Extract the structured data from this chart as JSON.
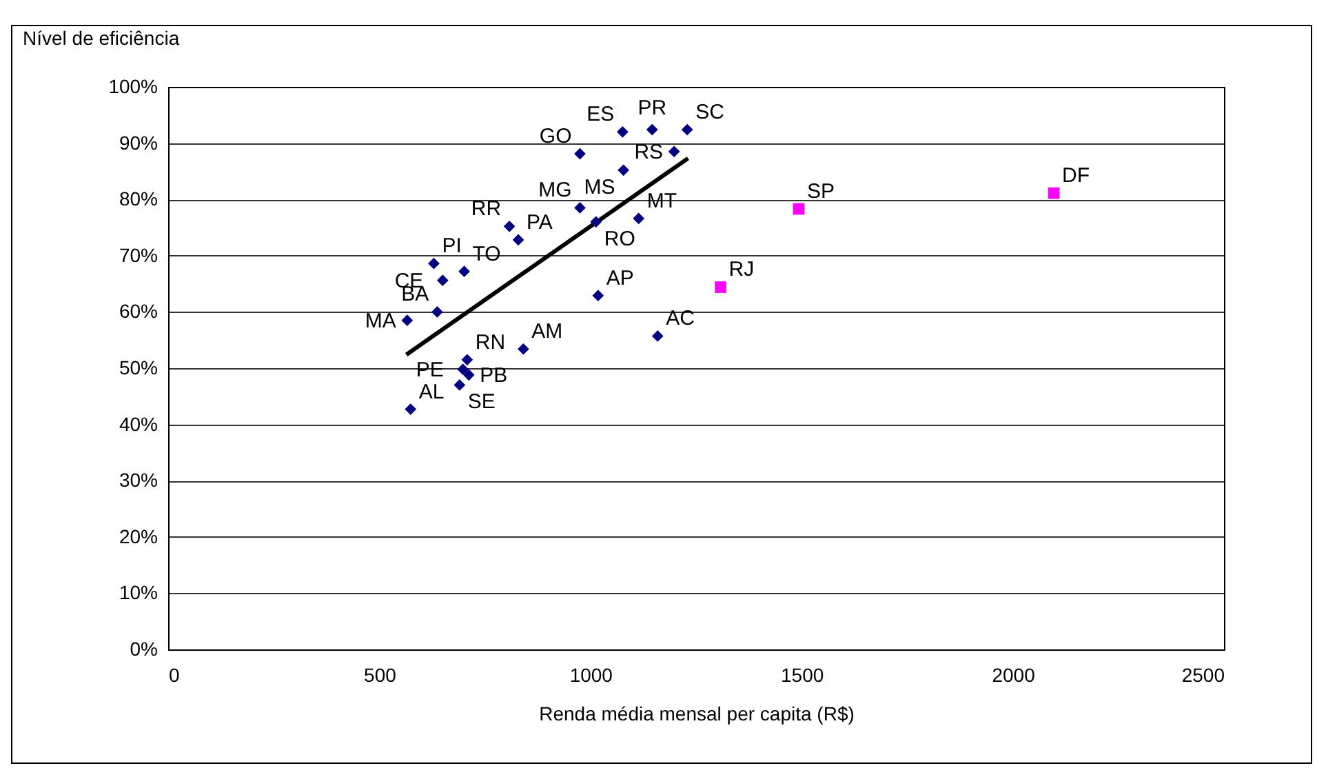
{
  "chart_data": {
    "type": "scatter",
    "xlabel": "Renda média mensal per capita (R$)",
    "ylabel": "Nível de eficiência",
    "xlim": [
      0,
      2500
    ],
    "xticks": [
      0,
      500,
      1000,
      1500,
      2000,
      2500
    ],
    "ylim": [
      0,
      100
    ],
    "yticks": [
      {
        "value": 0,
        "label": "0%"
      },
      {
        "value": 10,
        "label": "10%"
      },
      {
        "value": 20,
        "label": "20%"
      },
      {
        "value": 30,
        "label": "30%"
      },
      {
        "value": 40,
        "label": "40%"
      },
      {
        "value": 50,
        "label": "50%"
      },
      {
        "value": 60,
        "label": "60%"
      },
      {
        "value": 70,
        "label": "70%"
      },
      {
        "value": 80,
        "label": "80%"
      },
      {
        "value": 90,
        "label": "90%"
      },
      {
        "value": 100,
        "label": "100%"
      }
    ],
    "grid": "y",
    "series": [
      {
        "marker": "diamond",
        "color": "#000080",
        "x": [
          1076,
          1146,
          1229,
          975,
          1198,
          1078,
          975,
          1114,
          1013,
          808,
          829,
          629,
          701,
          650,
          637,
          566,
          1018,
          1159,
          841,
          708,
          698,
          712,
          690,
          574
        ],
        "values": [
          92.0,
          92.4,
          92.4,
          88.1,
          88.5,
          85.2,
          78.5,
          76.6,
          76.0,
          75.2,
          72.8,
          68.6,
          67.2,
          65.6,
          60.0,
          58.5,
          62.9,
          55.7,
          53.4,
          51.5,
          49.8,
          48.8,
          47.0,
          42.7
        ]
      },
      {
        "marker": "square",
        "color": "#ff00ff",
        "x": [
          1308,
          1493,
          2097
        ],
        "values": [
          64.4,
          78.3,
          81.1
        ]
      },
      {
        "type": "line",
        "color": "#000000",
        "x": [
          564,
          1231
        ],
        "values": [
          52.4,
          87.3
        ]
      }
    ],
    "annotations": [
      {
        "text": "ES",
        "x": 1076,
        "y": 92.0
      },
      {
        "text": "PR",
        "x": 1146,
        "y": 92.4
      },
      {
        "text": "SC",
        "x": 1229,
        "y": 92.4
      },
      {
        "text": "GO",
        "x": 975,
        "y": 88.1
      },
      {
        "text": "RS",
        "x": 1198,
        "y": 88.5
      },
      {
        "text": "MS",
        "x": 1078,
        "y": 85.2
      },
      {
        "text": "MG",
        "x": 975,
        "y": 78.5
      },
      {
        "text": "MT",
        "x": 1114,
        "y": 76.6
      },
      {
        "text": "RO",
        "x": 1013,
        "y": 76.0
      },
      {
        "text": "RR",
        "x": 808,
        "y": 75.2
      },
      {
        "text": "PA",
        "x": 829,
        "y": 72.8
      },
      {
        "text": "PI",
        "x": 629,
        "y": 68.6
      },
      {
        "text": "TO",
        "x": 701,
        "y": 67.2
      },
      {
        "text": "CE",
        "x": 650,
        "y": 65.6
      },
      {
        "text": "BA",
        "x": 637,
        "y": 60.0
      },
      {
        "text": "MA",
        "x": 566,
        "y": 58.5
      },
      {
        "text": "AP",
        "x": 1018,
        "y": 62.9
      },
      {
        "text": "AC",
        "x": 1159,
        "y": 55.7
      },
      {
        "text": "AM",
        "x": 841,
        "y": 53.4
      },
      {
        "text": "RN",
        "x": 708,
        "y": 51.5
      },
      {
        "text": "PB",
        "x": 712,
        "y": 48.8
      },
      {
        "text": "PE",
        "x": 698,
        "y": 49.8
      },
      {
        "text": "SE",
        "x": 690,
        "y": 47.0
      },
      {
        "text": "AL",
        "x": 574,
        "y": 42.7
      },
      {
        "text": "RJ",
        "x": 1308,
        "y": 64.4
      },
      {
        "text": "SP",
        "x": 1493,
        "y": 78.3
      },
      {
        "text": "DF",
        "x": 2097,
        "y": 81.1
      }
    ]
  }
}
